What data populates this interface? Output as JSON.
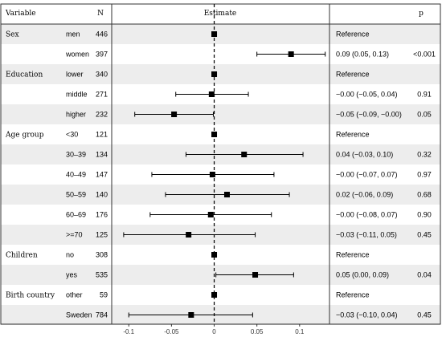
{
  "headers": {
    "variable": "Variable",
    "n": "N",
    "estimate": "Estimate",
    "p": "p"
  },
  "chart_data": {
    "type": "forest",
    "xlim": [
      -0.12,
      0.135
    ],
    "reference_line": 0,
    "x_ticks": [
      {
        "value": -0.1,
        "label": "-0.1"
      },
      {
        "value": -0.05,
        "label": "-0.05"
      },
      {
        "value": 0,
        "label": "0"
      },
      {
        "value": 0.05,
        "label": "0.05"
      },
      {
        "value": 0.1,
        "label": "0.1"
      }
    ],
    "rows": [
      {
        "group": "Sex",
        "level": "men",
        "n": "446",
        "estimate": 0.0,
        "low": null,
        "high": null,
        "ci_text": "Reference",
        "p": ""
      },
      {
        "group": "",
        "level": "women",
        "n": "397",
        "estimate": 0.09,
        "low": 0.05,
        "high": 0.13,
        "ci_text": "0.09 (0.05, 0.13)",
        "p": "<0.001"
      },
      {
        "group": "Education",
        "level": "lower",
        "n": "340",
        "estimate": 0.0,
        "low": null,
        "high": null,
        "ci_text": "Reference",
        "p": ""
      },
      {
        "group": "",
        "level": "middle",
        "n": "271",
        "estimate": -0.003,
        "low": -0.045,
        "high": 0.04,
        "ci_text": "−0.00 (−0.05, 0.04)",
        "p": "0.91"
      },
      {
        "group": "",
        "level": "higher",
        "n": "232",
        "estimate": -0.047,
        "low": -0.093,
        "high": -0.001,
        "ci_text": "−0.05 (−0.09, −0.00)",
        "p": "0.05"
      },
      {
        "group": "Age group",
        "level": "<30",
        "n": "121",
        "estimate": 0.0,
        "low": null,
        "high": null,
        "ci_text": "Reference",
        "p": ""
      },
      {
        "group": "",
        "level": "30–39",
        "n": "134",
        "estimate": 0.035,
        "low": -0.033,
        "high": 0.104,
        "ci_text": "0.04 (−0.03, 0.10)",
        "p": "0.32"
      },
      {
        "group": "",
        "level": "40–49",
        "n": "147",
        "estimate": -0.002,
        "low": -0.073,
        "high": 0.07,
        "ci_text": "−0.00 (−0.07, 0.07)",
        "p": "0.97"
      },
      {
        "group": "",
        "level": "50–59",
        "n": "140",
        "estimate": 0.015,
        "low": -0.057,
        "high": 0.088,
        "ci_text": "0.02 (−0.06, 0.09)",
        "p": "0.68"
      },
      {
        "group": "",
        "level": "60–69",
        "n": "176",
        "estimate": -0.004,
        "low": -0.075,
        "high": 0.067,
        "ci_text": "−0.00 (−0.08, 0.07)",
        "p": "0.90"
      },
      {
        "group": "",
        "level": ">=70",
        "n": "125",
        "estimate": -0.03,
        "low": -0.106,
        "high": 0.048,
        "ci_text": "−0.03 (−0.11, 0.05)",
        "p": "0.45"
      },
      {
        "group": "Children",
        "level": "no",
        "n": "308",
        "estimate": 0.0,
        "low": null,
        "high": null,
        "ci_text": "Reference",
        "p": ""
      },
      {
        "group": "",
        "level": "yes",
        "n": "535",
        "estimate": 0.048,
        "low": 0.002,
        "high": 0.093,
        "ci_text": "0.05 (0.00, 0.09)",
        "p": "0.04"
      },
      {
        "group": "Birth country",
        "level": "other",
        "n": "59",
        "estimate": 0.0,
        "low": null,
        "high": null,
        "ci_text": "Reference",
        "p": ""
      },
      {
        "group": "",
        "level": "Sweden",
        "n": "784",
        "estimate": -0.027,
        "low": -0.1,
        "high": 0.045,
        "ci_text": "−0.03 (−0.10, 0.04)",
        "p": "0.45"
      }
    ]
  }
}
